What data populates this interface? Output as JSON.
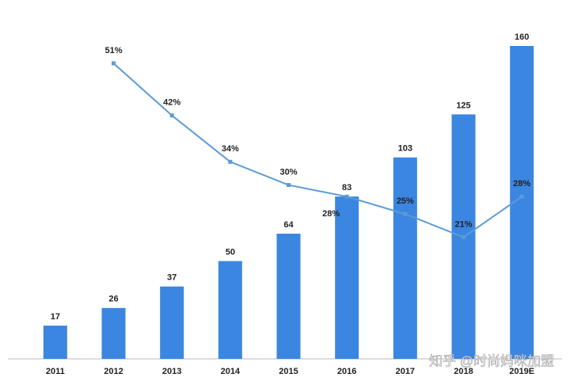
{
  "chart_data": {
    "type": "bar_line",
    "categories": [
      "2011",
      "2012",
      "2013",
      "2014",
      "2015",
      "2016",
      "2017",
      "2018",
      "2019E"
    ],
    "series": [
      {
        "type": "bar",
        "color": "#3b86e0",
        "values": [
          17,
          26,
          37,
          50,
          64,
          83,
          103,
          125,
          160
        ]
      },
      {
        "type": "line",
        "axis": "y2",
        "color": "#5b9bd5",
        "values": [
          null,
          51,
          42,
          34,
          30,
          28,
          25,
          21,
          28
        ],
        "value_labels": [
          null,
          "51%",
          "42%",
          "34%",
          "30%",
          "28%",
          "25%",
          "21%",
          "28%"
        ]
      }
    ],
    "ylim": [
      0,
      160
    ],
    "y2lim": [
      0,
      54
    ],
    "watermark": "知乎 @时尚妈咪加盟"
  }
}
